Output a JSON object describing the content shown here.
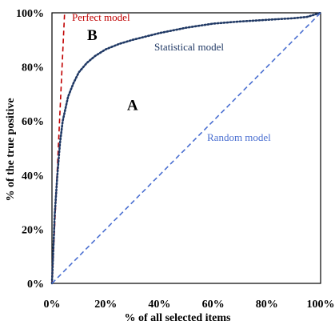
{
  "chart_data": {
    "type": "line",
    "xlabel": "% of all selected items",
    "ylabel": "% of the true positive",
    "xlim": [
      0,
      100
    ],
    "ylim": [
      0,
      100
    ],
    "grid": false,
    "legend": "none",
    "x_ticks": [
      "0%",
      "20%",
      "40%",
      "60%",
      "80%",
      "100%"
    ],
    "y_ticks": [
      "0%",
      "20%",
      "40%",
      "60%",
      "80%",
      "100%"
    ],
    "series": [
      {
        "name": "Perfect model",
        "color": "#c00000",
        "style": "dashed",
        "x": [
          0,
          4.7
        ],
        "y": [
          0,
          100
        ]
      },
      {
        "name": "Statistical model",
        "color": "#1f3864",
        "style": "dotted",
        "x": [
          0,
          1,
          2,
          3,
          4,
          6,
          8,
          10,
          13,
          16,
          20,
          25,
          30,
          40,
          50,
          60,
          70,
          80,
          90,
          95,
          100
        ],
        "y": [
          0,
          25,
          40,
          52,
          60,
          69,
          74,
          78,
          81.5,
          84,
          86.5,
          88.5,
          90,
          92.5,
          94.5,
          96,
          96.8,
          97.4,
          98,
          98.5,
          100
        ]
      },
      {
        "name": "Random model",
        "color": "#4a6fd1",
        "style": "dashed",
        "x": [
          0,
          100
        ],
        "y": [
          0,
          100
        ]
      }
    ],
    "annotations": [
      {
        "text": "A",
        "x": 30,
        "y": 64
      },
      {
        "text": "B",
        "x": 15,
        "y": 90
      }
    ]
  }
}
